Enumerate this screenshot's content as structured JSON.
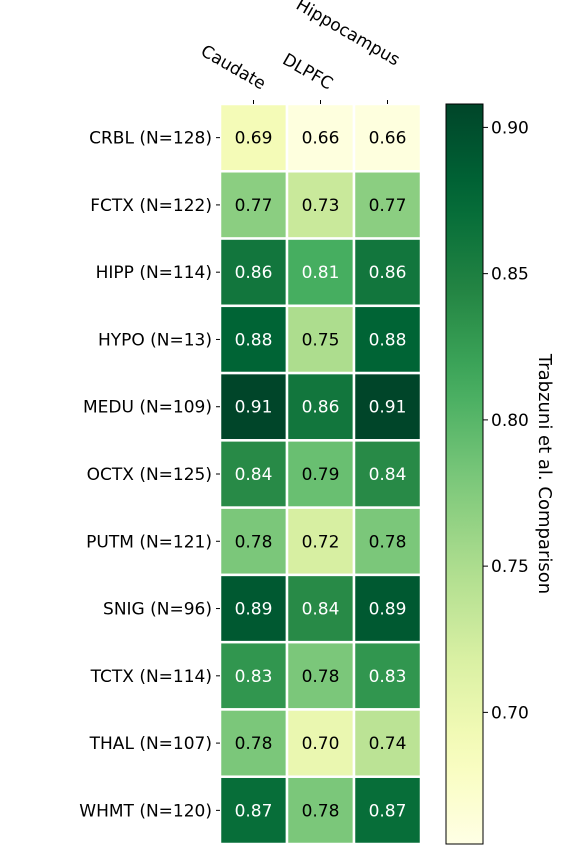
{
  "chart_data": {
    "type": "heatmap",
    "columns": [
      "Caudate",
      "DLPFC",
      "Hippocampus"
    ],
    "rows": [
      "CRBL (N=128)",
      "FCTX (N=122)",
      "HIPP (N=114)",
      "HYPO (N=13)",
      "MEDU (N=109)",
      "OCTX (N=125)",
      "PUTM (N=121)",
      "SNIG (N=96)",
      "TCTX (N=114)",
      "THAL (N=107)",
      "WHMT (N=120)"
    ],
    "values": [
      [
        0.69,
        0.66,
        0.66
      ],
      [
        0.77,
        0.73,
        0.77
      ],
      [
        0.86,
        0.81,
        0.86
      ],
      [
        0.88,
        0.75,
        0.88
      ],
      [
        0.91,
        0.86,
        0.91
      ],
      [
        0.84,
        0.79,
        0.84
      ],
      [
        0.78,
        0.72,
        0.78
      ],
      [
        0.89,
        0.84,
        0.89
      ],
      [
        0.83,
        0.78,
        0.83
      ],
      [
        0.78,
        0.7,
        0.74
      ],
      [
        0.87,
        0.78,
        0.87
      ]
    ],
    "colorbar": {
      "label": "Trabzuni et al. Comparison",
      "min": 0.655,
      "max": 0.908,
      "ticks": [
        0.7,
        0.75,
        0.8,
        0.85,
        0.9
      ],
      "tick_labels": [
        "0.70",
        "0.75",
        "0.80",
        "0.85",
        "0.90"
      ],
      "colormap": "YlGn"
    }
  }
}
